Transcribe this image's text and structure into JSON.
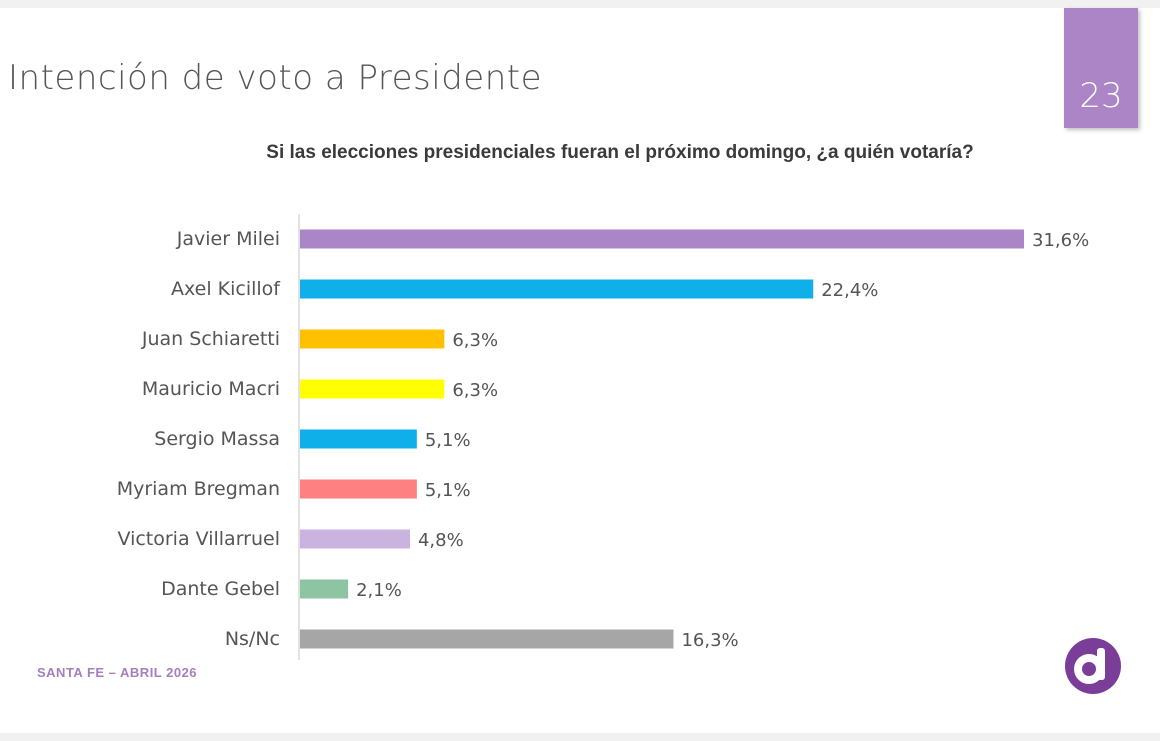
{
  "slide": {
    "title": "Intención de voto a Presidente",
    "page_number": "23",
    "footer": "SANTA FE – ABRIL 2026",
    "logo_icon": "letter-d-circle-logo",
    "accent_color": "#ab85c6"
  },
  "chart_data": {
    "type": "bar",
    "orientation": "horizontal",
    "title": "Si las elecciones presidenciales fueran el próximo domingo, ¿a quién votaría?",
    "categories": [
      "Javier Milei",
      "Axel Kicillof",
      "Juan Schiaretti",
      "Mauricio Macri",
      "Sergio Massa",
      "Myriam Bregman",
      "Victoria Villarruel",
      "Dante Gebel",
      "Ns/Nc"
    ],
    "values": [
      31.6,
      22.4,
      6.3,
      6.3,
      5.1,
      5.1,
      4.8,
      2.1,
      16.3
    ],
    "value_labels": [
      "31,6%",
      "22,4%",
      "6,3%",
      "6,3%",
      "5,1%",
      "5,1%",
      "4,8%",
      "2,1%",
      "16,3%"
    ],
    "colors": [
      "#ab86c7",
      "#0fb0ea",
      "#ffc000",
      "#ffff00",
      "#0fb0ea",
      "#ff8080",
      "#cbb3df",
      "#8dc5a3",
      "#a6a6a6"
    ],
    "xlim": [
      0,
      31.6
    ],
    "grid": false,
    "legend": "none"
  }
}
